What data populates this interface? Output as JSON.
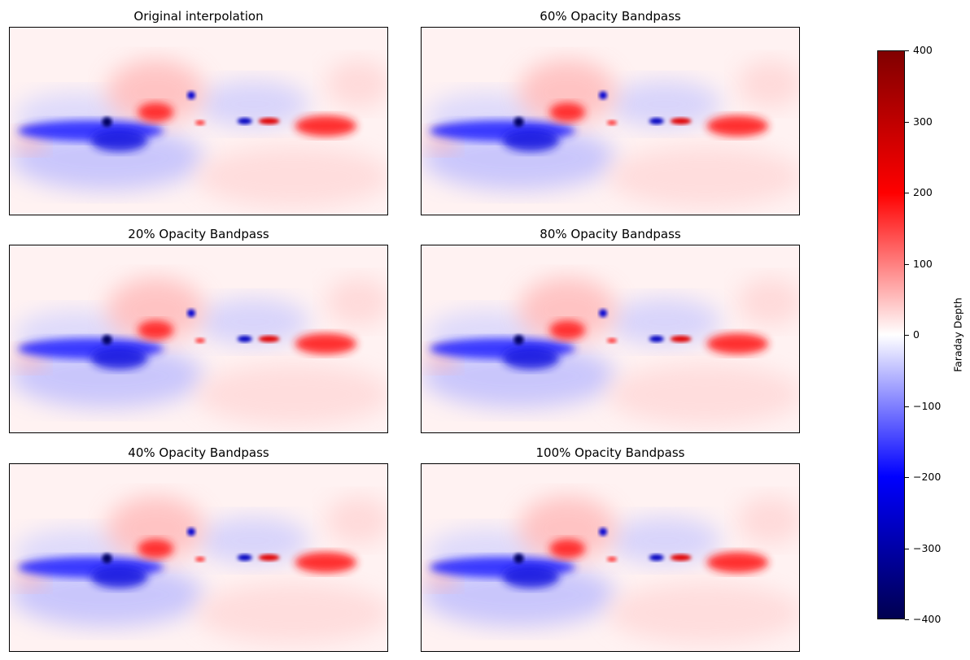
{
  "figure": {
    "panels": [
      {
        "title": "Original interpolation"
      },
      {
        "title": "20% Opacity Bandpass"
      },
      {
        "title": "40% Opacity Bandpass"
      },
      {
        "title": "60% Opacity Bandpass"
      },
      {
        "title": "80% Opacity Bandpass"
      },
      {
        "title": "100% Opacity Bandpass"
      }
    ],
    "colorbar": {
      "label": "Faraday Depth",
      "ticks": [
        "400",
        "300",
        "200",
        "100",
        "0",
        "−100",
        "−200",
        "−300",
        "−400"
      ]
    }
  },
  "chart_data": {
    "type": "heatmap",
    "layout": "3 rows x 2 columns of all-sky maps with shared colorbar",
    "titles": [
      "Original interpolation",
      "60% Opacity Bandpass",
      "20% Opacity Bandpass",
      "80% Opacity Bandpass",
      "40% Opacity Bandpass",
      "100% Opacity Bandpass"
    ],
    "colormap": "seismic",
    "colorbar_label": "Faraday Depth",
    "vmin": -400,
    "vmax": 400,
    "colorbar_ticks": [
      -400,
      -300,
      -200,
      -100,
      0,
      100,
      200,
      300,
      400
    ],
    "axes_ticks": "none",
    "colors": {
      "max": "#800000",
      "high": "#ff0000",
      "zero": "#ffffff",
      "low": "#0000ff",
      "min": "#000050"
    }
  }
}
